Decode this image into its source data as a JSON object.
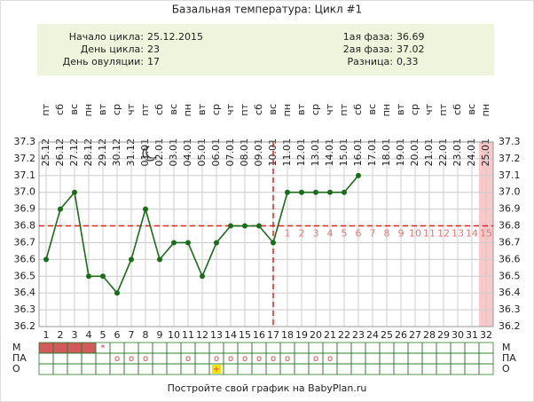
{
  "chart_data": {
    "type": "line",
    "title": "Базальная температура: Цикл #1",
    "info_left": [
      {
        "label": "Начало цикла:",
        "value": "25.12.2015"
      },
      {
        "label": "День цикла:",
        "value": "23"
      },
      {
        "label": "День овуляции:",
        "value": "17"
      }
    ],
    "info_right": [
      {
        "label": "1ая фаза:",
        "value": "36.69"
      },
      {
        "label": "2ая фаза:",
        "value": "37.02"
      },
      {
        "label": "Разница:",
        "value": "0,33"
      }
    ],
    "weekdays": [
      "пт",
      "сб",
      "вс",
      "пн",
      "вт",
      "ср",
      "чт",
      "пт",
      "сб",
      "вс",
      "пн",
      "вт",
      "ср",
      "чт",
      "пт",
      "сб",
      "вс",
      "пн",
      "вт",
      "ср",
      "чт",
      "пт",
      "сб",
      "вс",
      "пн",
      "вт",
      "ср",
      "чт",
      "пт",
      "сб",
      "вс",
      "пн"
    ],
    "x": [
      "25.12",
      "26.12",
      "27.12",
      "28.12",
      "29.12",
      "30.12",
      "31.12",
      "01.01",
      "02.01",
      "03.01",
      "04.01",
      "05.01",
      "06.01",
      "07.01",
      "08.01",
      "09.01",
      "10.01",
      "11.01",
      "12.01",
      "13.01",
      "14.01",
      "15.01",
      "16.01",
      "17.01",
      "18.01",
      "19.01",
      "20.01",
      "21.01",
      "22.01",
      "23.01",
      "24.01",
      "25.01"
    ],
    "days": [
      1,
      2,
      3,
      4,
      5,
      6,
      7,
      8,
      9,
      10,
      11,
      12,
      13,
      14,
      15,
      16,
      17,
      18,
      19,
      20,
      21,
      22,
      23,
      24,
      25,
      26,
      27,
      28,
      29,
      30,
      31,
      32
    ],
    "series": [
      {
        "color": "#1a6b1a",
        "values": [
          36.6,
          36.9,
          37.0,
          36.5,
          36.5,
          36.4,
          36.6,
          36.9,
          36.6,
          36.7,
          36.7,
          36.5,
          36.7,
          36.8,
          36.8,
          36.8,
          36.7,
          37.0,
          37.0,
          37.0,
          37.0,
          37.0,
          37.1,
          null,
          null,
          null,
          null,
          null,
          null,
          null,
          null,
          null
        ]
      }
    ],
    "ylim": [
      36.2,
      37.3
    ],
    "yticks": [
      36.2,
      36.3,
      36.4,
      36.5,
      36.6,
      36.7,
      36.8,
      36.9,
      {
        "value": 37,
        "label": "37.0"
      },
      37.1,
      37.2,
      37.3
    ],
    "grid": true,
    "coverline": 36.8,
    "ovulation_day": 17,
    "phase_days": [
      1,
      2,
      3,
      4,
      5,
      6,
      7,
      8,
      9,
      10,
      11,
      12,
      13,
      14,
      15
    ],
    "rows": [
      {
        "label": "М",
        "filled": [
          1,
          2,
          3,
          4
        ],
        "marks": [
          {
            "day": 5,
            "text": "*"
          }
        ]
      },
      {
        "label": "ПА",
        "marks": [
          {
            "day": 6,
            "text": "o"
          },
          {
            "day": 7,
            "text": "o"
          },
          {
            "day": 8,
            "text": "o"
          },
          {
            "day": 11,
            "text": "o"
          },
          {
            "day": 13,
            "text": "o"
          },
          {
            "day": 14,
            "text": "o"
          },
          {
            "day": 15,
            "text": "o"
          },
          {
            "day": 16,
            "text": "o"
          },
          {
            "day": 17,
            "text": "o"
          },
          {
            "day": 18,
            "text": "o"
          },
          {
            "day": 20,
            "text": "o"
          },
          {
            "day": 21,
            "text": "o"
          }
        ]
      },
      {
        "label": "О",
        "marks": [
          {
            "day": 13,
            "text": "+"
          }
        ]
      }
    ],
    "footer": "Постройте свой график на BabyPlan.ru"
  }
}
